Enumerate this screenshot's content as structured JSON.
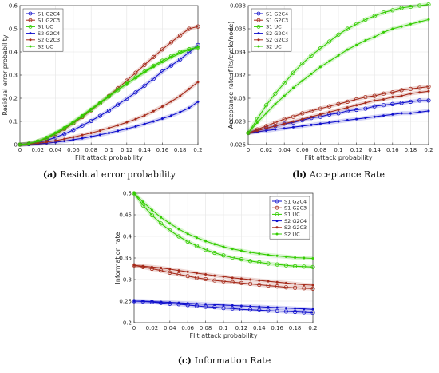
{
  "chart_data": [
    {
      "type": "line",
      "caption_label": "(a)",
      "caption_text": "Residual error probability",
      "xlabel": "Flit attack probability",
      "ylabel": "Residual error probability",
      "xlim": [
        0,
        0.2
      ],
      "ylim": [
        0,
        0.6
      ],
      "xticks": [
        "0",
        "0.02",
        "0.04",
        "0.06",
        "0.08",
        "0.1",
        "0.12",
        "0.14",
        "0.16",
        "0.18",
        "0.2"
      ],
      "yticks": [
        "0",
        "0.1",
        "0.2",
        "0.3",
        "0.4",
        "0.5",
        "0.6"
      ],
      "legend_position": "top-left",
      "x": [
        0,
        0.01,
        0.02,
        0.03,
        0.04,
        0.05,
        0.06,
        0.07,
        0.08,
        0.09,
        0.1,
        0.11,
        0.12,
        0.13,
        0.14,
        0.15,
        0.16,
        0.17,
        0.18,
        0.19,
        0.2
      ],
      "series": [
        {
          "name": "S1 G2C4",
          "color": "#1010cc",
          "marker": "circle",
          "values": [
            0,
            0.002,
            0.008,
            0.018,
            0.031,
            0.046,
            0.063,
            0.082,
            0.102,
            0.124,
            0.147,
            0.172,
            0.198,
            0.225,
            0.254,
            0.284,
            0.315,
            0.341,
            0.368,
            0.398,
            0.43
          ]
        },
        {
          "name": "S1 G2C3",
          "color": "#a52a1a",
          "marker": "circle",
          "values": [
            0,
            0.004,
            0.013,
            0.027,
            0.045,
            0.067,
            0.092,
            0.119,
            0.148,
            0.178,
            0.21,
            0.243,
            0.276,
            0.31,
            0.344,
            0.378,
            0.411,
            0.442,
            0.472,
            0.5,
            0.51
          ]
        },
        {
          "name": "S1 UC",
          "color": "#33cc00",
          "marker": "circle",
          "values": [
            0,
            0.004,
            0.014,
            0.029,
            0.048,
            0.07,
            0.095,
            0.122,
            0.15,
            0.178,
            0.207,
            0.235,
            0.262,
            0.29,
            0.315,
            0.34,
            0.362,
            0.382,
            0.4,
            0.412,
            0.42
          ]
        },
        {
          "name": "S2 G2C4",
          "color": "#1010cc",
          "marker": "dot",
          "values": [
            0,
            0.001,
            0.003,
            0.006,
            0.01,
            0.015,
            0.021,
            0.027,
            0.034,
            0.042,
            0.05,
            0.059,
            0.068,
            0.078,
            0.089,
            0.1,
            0.112,
            0.125,
            0.14,
            0.158,
            0.185
          ]
        },
        {
          "name": "S2 G2C3",
          "color": "#a52a1a",
          "marker": "dot",
          "values": [
            0,
            0.002,
            0.006,
            0.011,
            0.017,
            0.024,
            0.032,
            0.041,
            0.05,
            0.06,
            0.071,
            0.083,
            0.096,
            0.11,
            0.126,
            0.144,
            0.164,
            0.186,
            0.21,
            0.24,
            0.27
          ]
        },
        {
          "name": "S2 UC",
          "color": "#33cc00",
          "marker": "dot",
          "values": [
            0,
            0.004,
            0.015,
            0.031,
            0.051,
            0.074,
            0.099,
            0.126,
            0.154,
            0.182,
            0.21,
            0.237,
            0.263,
            0.288,
            0.312,
            0.335,
            0.356,
            0.376,
            0.394,
            0.41,
            0.42
          ]
        }
      ]
    },
    {
      "type": "line",
      "caption_label": "(b)",
      "caption_text": "Acceptance Rate",
      "xlabel": "Flit attack probability",
      "ylabel": "Acceptance rate (flits/cycle/node)",
      "xlim": [
        0,
        0.2
      ],
      "ylim": [
        0.026,
        0.038
      ],
      "xticks": [
        "0",
        "0.02",
        "0.04",
        "0.06",
        "0.08",
        "0.1",
        "0.12",
        "0.14",
        "0.16",
        "0.18",
        "0.2"
      ],
      "yticks": [
        "0.026",
        "0.028",
        "0.03",
        "0.032",
        "0.034",
        "0.036",
        "0.038"
      ],
      "legend_position": "top-left",
      "x": [
        0,
        0.01,
        0.02,
        0.03,
        0.04,
        0.05,
        0.06,
        0.07,
        0.08,
        0.09,
        0.1,
        0.11,
        0.12,
        0.13,
        0.14,
        0.15,
        0.16,
        0.17,
        0.18,
        0.19,
        0.2
      ],
      "series": [
        {
          "name": "S1 G2C4",
          "color": "#1010cc",
          "marker": "circle",
          "values": [
            0.027,
            0.0272,
            0.0274,
            0.0276,
            0.0278,
            0.0279,
            0.0281,
            0.0283,
            0.0284,
            0.0286,
            0.0287,
            0.0289,
            0.029,
            0.0291,
            0.0293,
            0.0294,
            0.0295,
            0.0296,
            0.0297,
            0.0298,
            0.0298
          ]
        },
        {
          "name": "S1 G2C3",
          "color": "#a52a1a",
          "marker": "circle",
          "values": [
            0.027,
            0.0273,
            0.0276,
            0.0279,
            0.0282,
            0.0284,
            0.0287,
            0.0289,
            0.0291,
            0.0293,
            0.0295,
            0.0297,
            0.0299,
            0.0301,
            0.0302,
            0.0304,
            0.0305,
            0.0307,
            0.0308,
            0.0309,
            0.031
          ]
        },
        {
          "name": "S1 UC",
          "color": "#33cc00",
          "marker": "circle",
          "values": [
            0.027,
            0.0282,
            0.0294,
            0.0304,
            0.0313,
            0.0322,
            0.033,
            0.0337,
            0.0343,
            0.0349,
            0.0355,
            0.036,
            0.0364,
            0.0368,
            0.0371,
            0.0374,
            0.0376,
            0.0378,
            0.0379,
            0.038,
            0.0381
          ]
        },
        {
          "name": "S2 G2C4",
          "color": "#1010cc",
          "marker": "dot",
          "values": [
            0.027,
            0.0271,
            0.0272,
            0.0273,
            0.0274,
            0.0275,
            0.0276,
            0.0277,
            0.0278,
            0.0279,
            0.028,
            0.0281,
            0.0282,
            0.0283,
            0.0284,
            0.0285,
            0.0286,
            0.0287,
            0.0287,
            0.0288,
            0.0289
          ]
        },
        {
          "name": "S2 G2C3",
          "color": "#a52a1a",
          "marker": "dot",
          "values": [
            0.027,
            0.0272,
            0.0274,
            0.0276,
            0.0278,
            0.028,
            0.0282,
            0.0284,
            0.0286,
            0.0288,
            0.029,
            0.0292,
            0.0294,
            0.0296,
            0.0298,
            0.0299,
            0.0301,
            0.0302,
            0.0304,
            0.0305,
            0.0306
          ]
        },
        {
          "name": "S2 UC",
          "color": "#33cc00",
          "marker": "dot",
          "values": [
            0.027,
            0.0279,
            0.0287,
            0.0295,
            0.0302,
            0.0309,
            0.0315,
            0.0321,
            0.0327,
            0.0332,
            0.0337,
            0.0342,
            0.0346,
            0.035,
            0.0353,
            0.0357,
            0.036,
            0.0362,
            0.0364,
            0.0366,
            0.0368
          ]
        }
      ]
    },
    {
      "type": "line",
      "caption_label": "(c)",
      "caption_text": "Information Rate",
      "xlabel": "Flit attack probability",
      "ylabel": "Information rate",
      "xlim": [
        0,
        0.2
      ],
      "ylim": [
        0.2,
        0.5
      ],
      "xticks": [
        "0",
        "0.02",
        "0.04",
        "0.06",
        "0.08",
        "0.1",
        "0.12",
        "0.14",
        "0.16",
        "0.18",
        "0.2"
      ],
      "yticks": [
        "0.2",
        "0.25",
        "0.3",
        "0.35",
        "0.4",
        "0.45",
        "0.5"
      ],
      "legend_position": "top-right",
      "x": [
        0,
        0.01,
        0.02,
        0.03,
        0.04,
        0.05,
        0.06,
        0.07,
        0.08,
        0.09,
        0.1,
        0.11,
        0.12,
        0.13,
        0.14,
        0.15,
        0.16,
        0.17,
        0.18,
        0.19,
        0.2
      ],
      "series": [
        {
          "name": "S1 G2C4",
          "color": "#1010cc",
          "marker": "circle",
          "values": [
            0.25,
            0.249,
            0.248,
            0.246,
            0.244,
            0.243,
            0.241,
            0.239,
            0.237,
            0.236,
            0.234,
            0.233,
            0.231,
            0.23,
            0.229,
            0.228,
            0.227,
            0.226,
            0.225,
            0.224,
            0.223
          ]
        },
        {
          "name": "S1 G2C3",
          "color": "#a52a1a",
          "marker": "circle",
          "values": [
            0.333,
            0.329,
            0.325,
            0.321,
            0.316,
            0.312,
            0.308,
            0.304,
            0.301,
            0.298,
            0.296,
            0.294,
            0.292,
            0.29,
            0.288,
            0.286,
            0.284,
            0.282,
            0.281,
            0.28,
            0.279
          ]
        },
        {
          "name": "S1 UC",
          "color": "#33cc00",
          "marker": "circle",
          "values": [
            0.5,
            0.472,
            0.449,
            0.43,
            0.414,
            0.4,
            0.388,
            0.378,
            0.369,
            0.362,
            0.356,
            0.351,
            0.347,
            0.343,
            0.34,
            0.337,
            0.335,
            0.333,
            0.331,
            0.33,
            0.329
          ]
        },
        {
          "name": "S2 G2C4",
          "color": "#1010cc",
          "marker": "dot",
          "values": [
            0.25,
            0.25,
            0.249,
            0.248,
            0.247,
            0.246,
            0.245,
            0.244,
            0.243,
            0.242,
            0.241,
            0.24,
            0.239,
            0.238,
            0.237,
            0.236,
            0.235,
            0.234,
            0.233,
            0.232,
            0.231
          ]
        },
        {
          "name": "S2 G2C3",
          "color": "#a52a1a",
          "marker": "dot",
          "values": [
            0.333,
            0.331,
            0.329,
            0.327,
            0.324,
            0.321,
            0.318,
            0.315,
            0.312,
            0.309,
            0.307,
            0.304,
            0.302,
            0.3,
            0.298,
            0.296,
            0.294,
            0.292,
            0.29,
            0.288,
            0.287
          ]
        },
        {
          "name": "S2 UC",
          "color": "#33cc00",
          "marker": "dot",
          "values": [
            0.5,
            0.48,
            0.461,
            0.444,
            0.43,
            0.417,
            0.406,
            0.397,
            0.389,
            0.382,
            0.376,
            0.371,
            0.367,
            0.363,
            0.36,
            0.357,
            0.355,
            0.353,
            0.351,
            0.35,
            0.349
          ]
        }
      ]
    }
  ]
}
